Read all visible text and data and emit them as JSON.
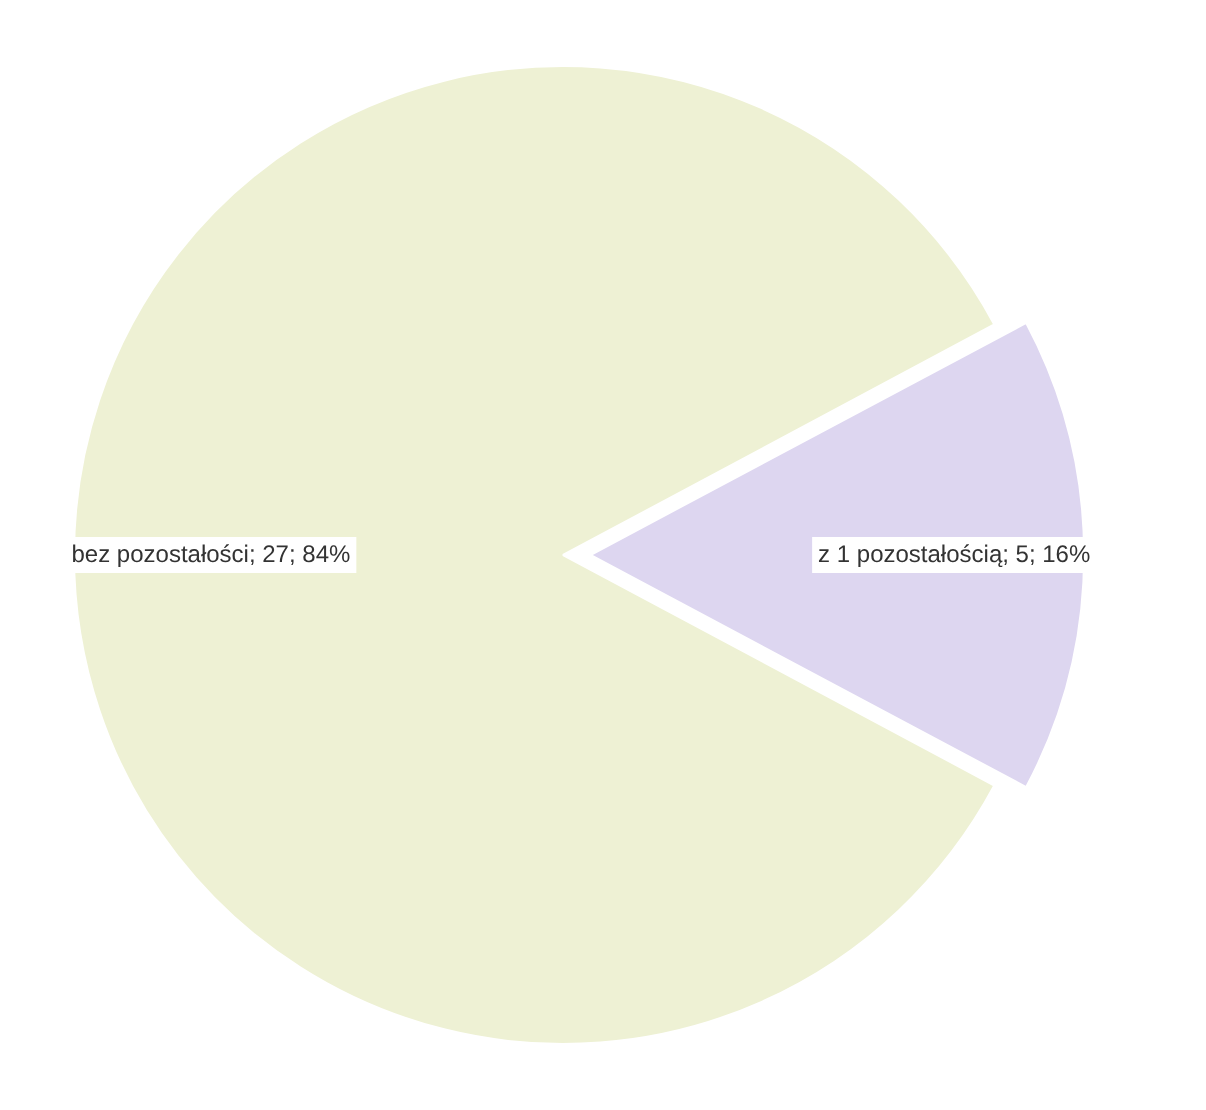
{
  "chart_data": {
    "type": "pie",
    "categories": [
      "bez pozostałości",
      "z 1 pozostałością"
    ],
    "values": [
      27,
      5
    ],
    "colors": [
      "#eef1d4",
      "#ddd6f0"
    ],
    "value_labels": [
      "; 27; 84%",
      "; 5; 16%"
    ],
    "legend": false
  }
}
